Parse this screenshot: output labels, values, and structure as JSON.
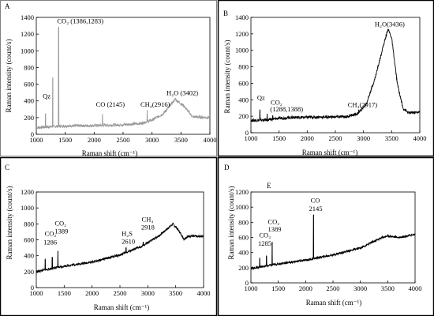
{
  "panels": [
    {
      "letter": "A",
      "chart_data": {
        "type": "line",
        "xlabel": "Raman shift (cm⁻¹)",
        "ylabel": "Raman intensity (count/s)",
        "xlim": [
          1000,
          4000
        ],
        "ylim": [
          0,
          1400
        ],
        "xticks": [
          1000,
          1500,
          2000,
          2500,
          3000,
          3500,
          4000
        ],
        "yticks": [
          0,
          200,
          400,
          600,
          800,
          1000,
          1200,
          1400
        ],
        "color": "#9a9a9a",
        "series": [
          {
            "baseline": [
              [
                1000,
                80
              ],
              [
                1200,
                90
              ],
              [
                1500,
                100
              ],
              [
                2000,
                105
              ],
              [
                2500,
                115
              ],
              [
                2800,
                130
              ],
              [
                3000,
                170
              ],
              [
                3200,
                250
              ],
              [
                3400,
                420
              ],
              [
                3550,
                340
              ],
              [
                3700,
                210
              ],
              [
                4000,
                200
              ]
            ],
            "peaks": [
              [
                1160,
                250
              ],
              [
                1285,
                680
              ],
              [
                1386,
                1283
              ],
              [
                2145,
                240
              ],
              [
                2916,
                290
              ],
              [
                3402,
                430
              ]
            ]
          }
        ],
        "annotations": [
          {
            "text": "Qz",
            "x": 1110,
            "y": 430
          },
          {
            "text": "CO₂ (1386,1283)",
            "x": 1360,
            "y": 1330
          },
          {
            "text": "CO (2145)",
            "x": 2030,
            "y": 330
          },
          {
            "text": "CH₄(2916)",
            "x": 2800,
            "y": 330
          },
          {
            "text": "H₂O (3402)",
            "x": 3250,
            "y": 470
          }
        ]
      }
    },
    {
      "letter": "B",
      "chart_data": {
        "type": "line",
        "xlabel": "Raman shift (cm⁻¹)",
        "ylabel": "Raman intensity (count/s)",
        "xlim": [
          1000,
          4000
        ],
        "ylim": [
          0,
          1400
        ],
        "xticks": [
          1000,
          1500,
          2000,
          2500,
          3000,
          3500,
          4000
        ],
        "yticks": [
          0,
          200,
          400,
          600,
          800,
          1000,
          1200,
          1400
        ],
        "color": "#000000",
        "series": [
          {
            "baseline": [
              [
                1000,
                150
              ],
              [
                1300,
                155
              ],
              [
                1500,
                175
              ],
              [
                1700,
                185
              ],
              [
                2200,
                190
              ],
              [
                2700,
                195
              ],
              [
                2900,
                230
              ],
              [
                3050,
                350
              ],
              [
                3200,
                650
              ],
              [
                3350,
                1050
              ],
              [
                3436,
                1260
              ],
              [
                3500,
                1150
              ],
              [
                3600,
                600
              ],
              [
                3700,
                300
              ],
              [
                3800,
                240
              ],
              [
                4000,
                250
              ]
            ],
            "peaks": [
              [
                1160,
                280
              ],
              [
                1288,
                230
              ],
              [
                1388,
                210
              ],
              [
                2917,
                280
              ]
            ]
          }
        ],
        "annotations": [
          {
            "text": "Qz",
            "x": 1110,
            "y": 400
          },
          {
            "text": "CO₂",
            "x": 1350,
            "y": 340
          },
          {
            "text": "(1288,1388)",
            "x": 1340,
            "y": 260
          },
          {
            "text": "CH₄(2917)",
            "x": 2720,
            "y": 310
          },
          {
            "text": "H₂O(3436)",
            "x": 3200,
            "y": 1290
          }
        ]
      }
    },
    {
      "letter": "C",
      "chart_data": {
        "type": "line",
        "xlabel": "Raman shift (cm⁻¹)",
        "ylabel": "Raman intensity (count/s)",
        "xlim": [
          1000,
          4000
        ],
        "ylim": [
          0,
          1200
        ],
        "xticks": [
          1000,
          1500,
          2000,
          2500,
          3000,
          3500,
          4000
        ],
        "yticks": [
          0,
          200,
          400,
          600,
          800,
          1000,
          1200
        ],
        "color": "#000000",
        "series": [
          {
            "baseline": [
              [
                1000,
                200
              ],
              [
                1500,
                270
              ],
              [
                2000,
                320
              ],
              [
                2500,
                410
              ],
              [
                2900,
                520
              ],
              [
                3200,
                650
              ],
              [
                3350,
                740
              ],
              [
                3450,
                800
              ],
              [
                3550,
                720
              ],
              [
                3650,
                610
              ],
              [
                3750,
                650
              ],
              [
                3900,
                640
              ],
              [
                4000,
                650
              ]
            ],
            "peaks": [
              [
                1160,
                360
              ],
              [
                1286,
                380
              ],
              [
                1389,
                460
              ],
              [
                2610,
                500
              ],
              [
                2918,
                570
              ]
            ]
          }
        ],
        "annotations": [
          {
            "text": "CO₂",
            "x": 1150,
            "y": 650
          },
          {
            "text": "1286",
            "x": 1130,
            "y": 540
          },
          {
            "text": "CO₂",
            "x": 1330,
            "y": 780
          },
          {
            "text": "1389",
            "x": 1330,
            "y": 680
          },
          {
            "text": "H₂S",
            "x": 2530,
            "y": 650
          },
          {
            "text": "2610",
            "x": 2530,
            "y": 550
          },
          {
            "text": "CH₄",
            "x": 2890,
            "y": 830
          },
          {
            "text": "2918",
            "x": 2880,
            "y": 730
          }
        ]
      }
    },
    {
      "letter": "D",
      "sublabel": "E",
      "chart_data": {
        "type": "line",
        "xlabel": "Raman shift (cm⁻¹)",
        "ylabel": "Raman intensity (count/s)",
        "xlim": [
          1000,
          4000
        ],
        "ylim": [
          0,
          1200
        ],
        "xticks": [
          1000,
          1500,
          2000,
          2500,
          3000,
          3500,
          4000
        ],
        "yticks": [
          0,
          200,
          400,
          600,
          800,
          1000,
          1200
        ],
        "color": "#000000",
        "series": [
          {
            "baseline": [
              [
                1000,
                190
              ],
              [
                1500,
                250
              ],
              [
                2000,
                300
              ],
              [
                2500,
                370
              ],
              [
                3000,
                460
              ],
              [
                3400,
                600
              ],
              [
                3500,
                620
              ],
              [
                3700,
                600
              ],
              [
                3850,
                620
              ],
              [
                4000,
                640
              ]
            ],
            "peaks": [
              [
                1160,
                330
              ],
              [
                1285,
                360
              ],
              [
                1389,
                540
              ],
              [
                2145,
                900
              ]
            ]
          }
        ],
        "annotations": [
          {
            "text": "CO₂",
            "x": 1150,
            "y": 600
          },
          {
            "text": "1285",
            "x": 1130,
            "y": 490
          },
          {
            "text": "CO₂",
            "x": 1310,
            "y": 780
          },
          {
            "text": "1389",
            "x": 1310,
            "y": 680
          },
          {
            "text": "CO",
            "x": 2090,
            "y": 1060
          },
          {
            "text": "2145",
            "x": 2060,
            "y": 950
          }
        ]
      }
    }
  ]
}
